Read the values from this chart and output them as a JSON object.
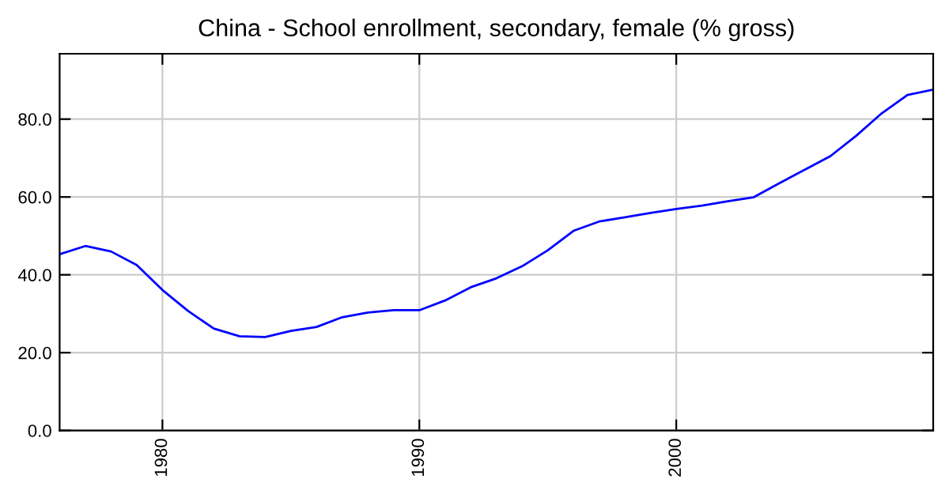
{
  "chart_data": {
    "type": "line",
    "title": "China - School enrollment, secondary, female (% gross)",
    "x": [
      1976,
      1977,
      1978,
      1979,
      1980,
      1981,
      1982,
      1983,
      1984,
      1985,
      1986,
      1987,
      1988,
      1989,
      1990,
      1991,
      1992,
      1993,
      1994,
      1995,
      1996,
      1997,
      1998,
      1999,
      2000,
      2001,
      2002,
      2003,
      2004,
      2005,
      2006,
      2007,
      2008,
      2009,
      2010
    ],
    "series": [
      {
        "color": "#0000ff",
        "values": [
          45.3,
          47.4,
          46.0,
          42.5,
          36.1,
          30.7,
          26.2,
          24.2,
          24.0,
          25.6,
          26.6,
          29.1,
          30.3,
          30.9,
          30.9,
          33.4,
          36.8,
          39.1,
          42.2,
          46.3,
          51.3,
          53.7,
          54.8,
          55.9,
          56.9,
          57.8,
          58.9,
          59.9,
          63.5,
          67.0,
          70.5,
          75.7,
          81.5,
          86.2,
          87.6
        ]
      }
    ],
    "xlim": [
      1976,
      2010
    ],
    "xticks": [
      1980,
      1990,
      2000
    ],
    "ylim": [
      0,
      96.8
    ],
    "yticks": [
      {
        "value": 0,
        "label": "0.0"
      },
      {
        "value": 20,
        "label": "20.0"
      },
      {
        "value": 40,
        "label": "40.0"
      },
      {
        "value": 60,
        "label": "60.0"
      },
      {
        "value": 80,
        "label": "80.0"
      }
    ],
    "grid": true,
    "marker": "none",
    "line_style": "solid"
  }
}
